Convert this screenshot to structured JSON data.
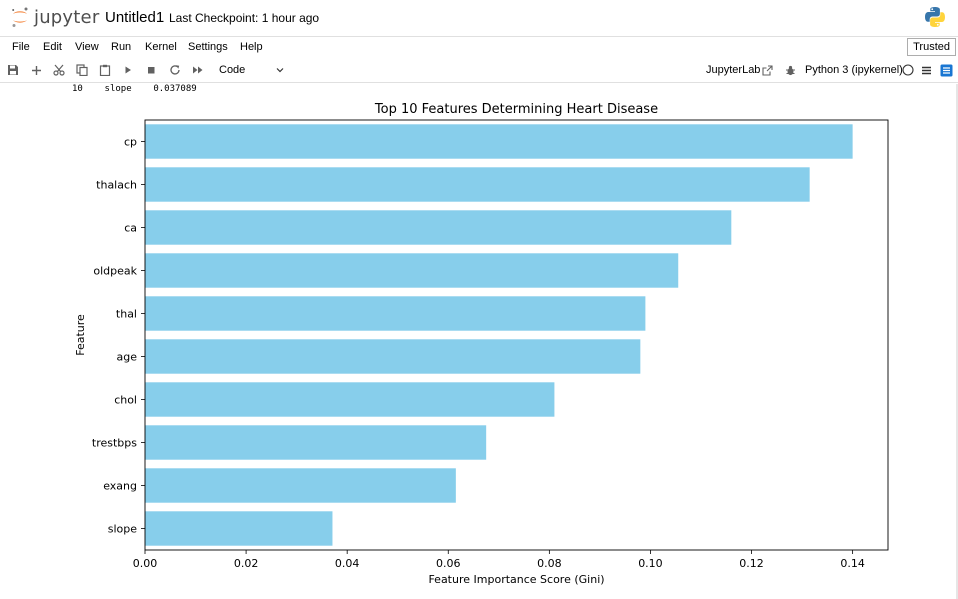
{
  "header": {
    "logo_text": "jupyter",
    "notebook_title": "Untitled1",
    "checkpoint": "Last Checkpoint: 1 hour ago",
    "python_logo": "python-logo"
  },
  "menubar": {
    "items": [
      "File",
      "Edit",
      "View",
      "Run",
      "Kernel",
      "Settings",
      "Help"
    ],
    "trusted_label": "Trusted"
  },
  "toolbar": {
    "icons": [
      "save-icon",
      "plus-icon",
      "cut-icon",
      "copy-icon",
      "paste-icon",
      "run-icon",
      "stop-icon",
      "restart-icon",
      "fast-forward-icon"
    ],
    "cell_type": "Code",
    "jupyterlab_label": "JupyterLab",
    "kernel_label": "Python 3 (ipykernel)"
  },
  "output": {
    "row_index": "10",
    "row_feature": "slope",
    "row_value": "0.037089"
  },
  "chart_data": {
    "type": "bar",
    "orientation": "horizontal",
    "title": "Top 10 Features Determining Heart Disease",
    "xlabel": "Feature Importance Score (Gini)",
    "ylabel": "Feature",
    "categories": [
      "cp",
      "thalach",
      "ca",
      "oldpeak",
      "thal",
      "age",
      "chol",
      "trestbps",
      "exang",
      "slope"
    ],
    "values": [
      0.14,
      0.1315,
      0.116,
      0.1055,
      0.099,
      0.098,
      0.081,
      0.0675,
      0.0615,
      0.037089
    ],
    "xlim": [
      0,
      0.147
    ],
    "xticks": [
      "0.00",
      "0.02",
      "0.04",
      "0.06",
      "0.08",
      "0.10",
      "0.12",
      "0.14"
    ],
    "xtick_values": [
      0,
      0.02,
      0.04,
      0.06,
      0.08,
      0.1,
      0.12,
      0.14
    ],
    "bar_color": "#87ceeb",
    "grid": false
  }
}
